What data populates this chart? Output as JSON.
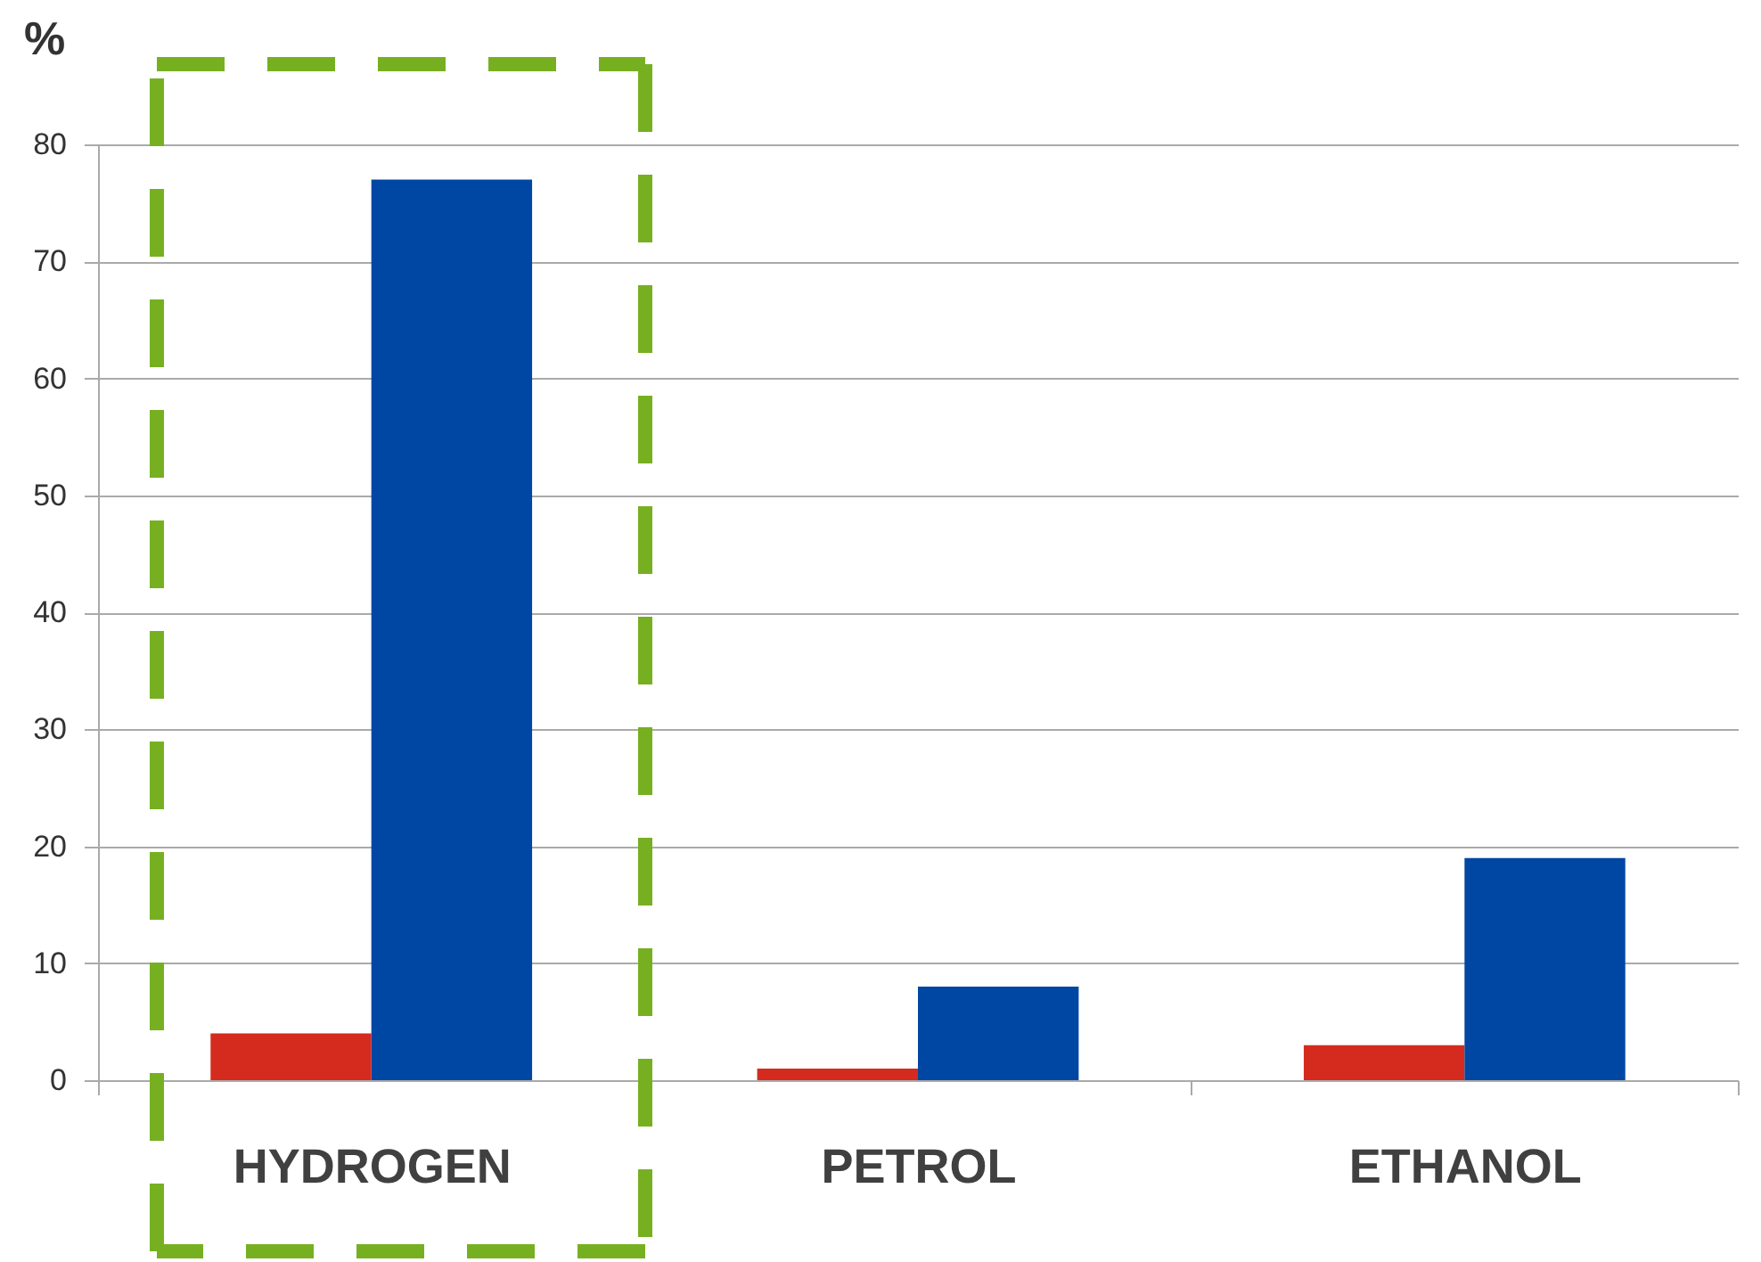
{
  "chart_data": {
    "type": "bar",
    "ylabel": "%",
    "categories": [
      "HYDROGEN",
      "PETROL",
      "ETHANOL"
    ],
    "series": [
      {
        "color": "#d52b1e",
        "values": [
          4,
          1,
          3
        ]
      },
      {
        "color": "#0047a3",
        "values": [
          77,
          8,
          19
        ]
      }
    ],
    "ylim": [
      0,
      80
    ],
    "yticks": [
      0,
      10,
      20,
      30,
      40,
      50,
      60,
      70,
      80
    ],
    "grid": "y",
    "legend": false
  }
}
